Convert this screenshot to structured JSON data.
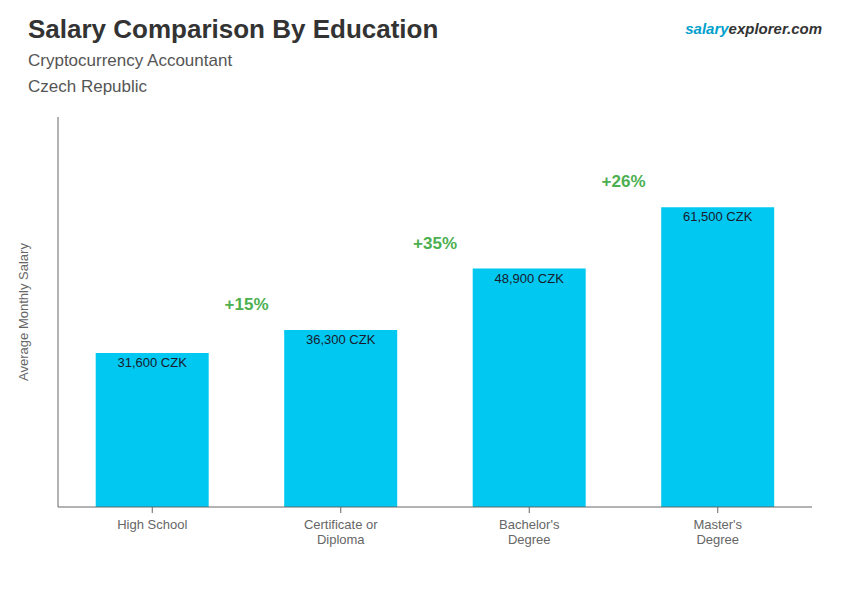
{
  "chart_data": {
    "type": "bar",
    "title": "Salary Comparison By Education",
    "subtitle": [
      "Cryptocurrency Accountant",
      "Czech Republic"
    ],
    "watermark": [
      "salary",
      "explorer.com"
    ],
    "y_label": "Average Monthly Salary",
    "categories": [
      "High School",
      "Certificate or\nDiploma",
      "Bachelor's\nDegree",
      "Master's\nDegree"
    ],
    "values": [
      31600,
      36300,
      48900,
      61500
    ],
    "value_labels": [
      "31,600 CZK",
      "36,300 CZK",
      "48,900 CZK",
      "61,500 CZK"
    ],
    "data_labels": true,
    "annotations": [
      "+15%",
      "+35%",
      "+26%"
    ],
    "color": "#00c8f0",
    "ylim": [
      0,
      80000
    ],
    "tick_labels": "x",
    "grid": false
  }
}
